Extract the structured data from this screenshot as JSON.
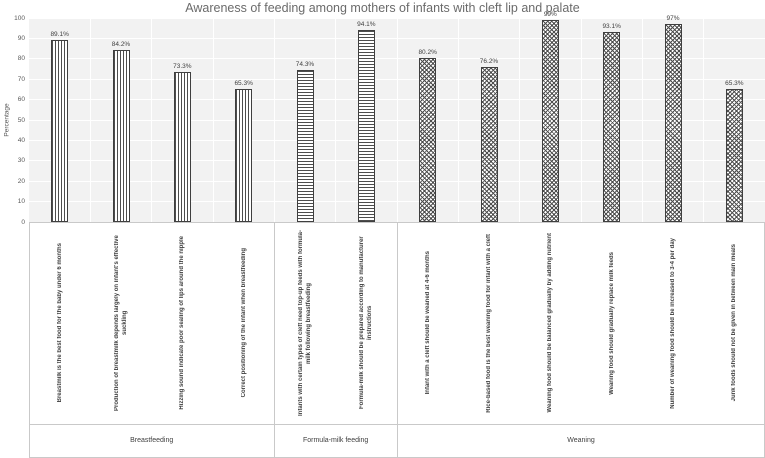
{
  "chart_data": {
    "type": "bar",
    "title": "Awareness of feeding among mothers of infants with cleft lip and palate",
    "ylabel": "Percentage",
    "ylim": [
      0,
      100
    ],
    "yticks": [
      0,
      10,
      20,
      30,
      40,
      50,
      60,
      70,
      80,
      90,
      100
    ],
    "grid": true,
    "legend": "none",
    "groups": [
      {
        "label": "Breastfeeding",
        "pattern": "vertical-stripes",
        "items": [
          {
            "category": "Breastmilk is the best food for the baby under 6 months",
            "value": 89.1,
            "value_label": "89.1%"
          },
          {
            "category": "Production of breastmilk depends largely on infant's effective suckling",
            "value": 84.2,
            "value_label": "84.2%"
          },
          {
            "category": "Hizzing sound indicate poor sealing of lips around the nipple",
            "value": 73.3,
            "value_label": "73.3%"
          },
          {
            "category": "Correct positioning of the infant when breastfeeding",
            "value": 65.3,
            "value_label": "65.3%"
          }
        ]
      },
      {
        "label": "Formula-milk feeding",
        "pattern": "horizontal-stripes",
        "items": [
          {
            "category": "Infants with certain types of cleft need top-up feeds with formula-milk following breastfeeding",
            "value": 74.3,
            "value_label": "74.3%"
          },
          {
            "category": "Formula-milk should be prepared according to manufacturer instructions",
            "value": 94.1,
            "value_label": "94.1%"
          }
        ]
      },
      {
        "label": "Weaning",
        "pattern": "diagonal-crosshatch",
        "items": [
          {
            "category": "Infant with a cleft should be weaned at 4-6 months",
            "value": 80.2,
            "value_label": "80.2%"
          },
          {
            "category": "Rice-based food is the best weaning food for infant with a cleft",
            "value": 76.2,
            "value_label": "76.2%"
          },
          {
            "category": "Weaning food should be balanced gradually by adding nutrient",
            "value": 99,
            "value_label": "99%"
          },
          {
            "category": "Weaning food should gradually replace milk feeds",
            "value": 93.1,
            "value_label": "93.1%"
          },
          {
            "category": "Number of weaning food should be increased to 3-4 per day",
            "value": 97,
            "value_label": "97%"
          },
          {
            "category": "Junk foods should not be given in between main meals",
            "value": 65.3,
            "value_label": "65.3%"
          }
        ]
      }
    ],
    "colors": {
      "title_text": "#6b6b6b",
      "axis_text": "#595959",
      "label_text": "#3f3f3f",
      "plot_background": "#f2f2f2",
      "gridline": "#ffffff",
      "bar_fill": "#ffffff",
      "bar_pattern": "#4d4d4d",
      "bar_border": "#3f3f3f",
      "divider": "#c9c9c9"
    }
  }
}
